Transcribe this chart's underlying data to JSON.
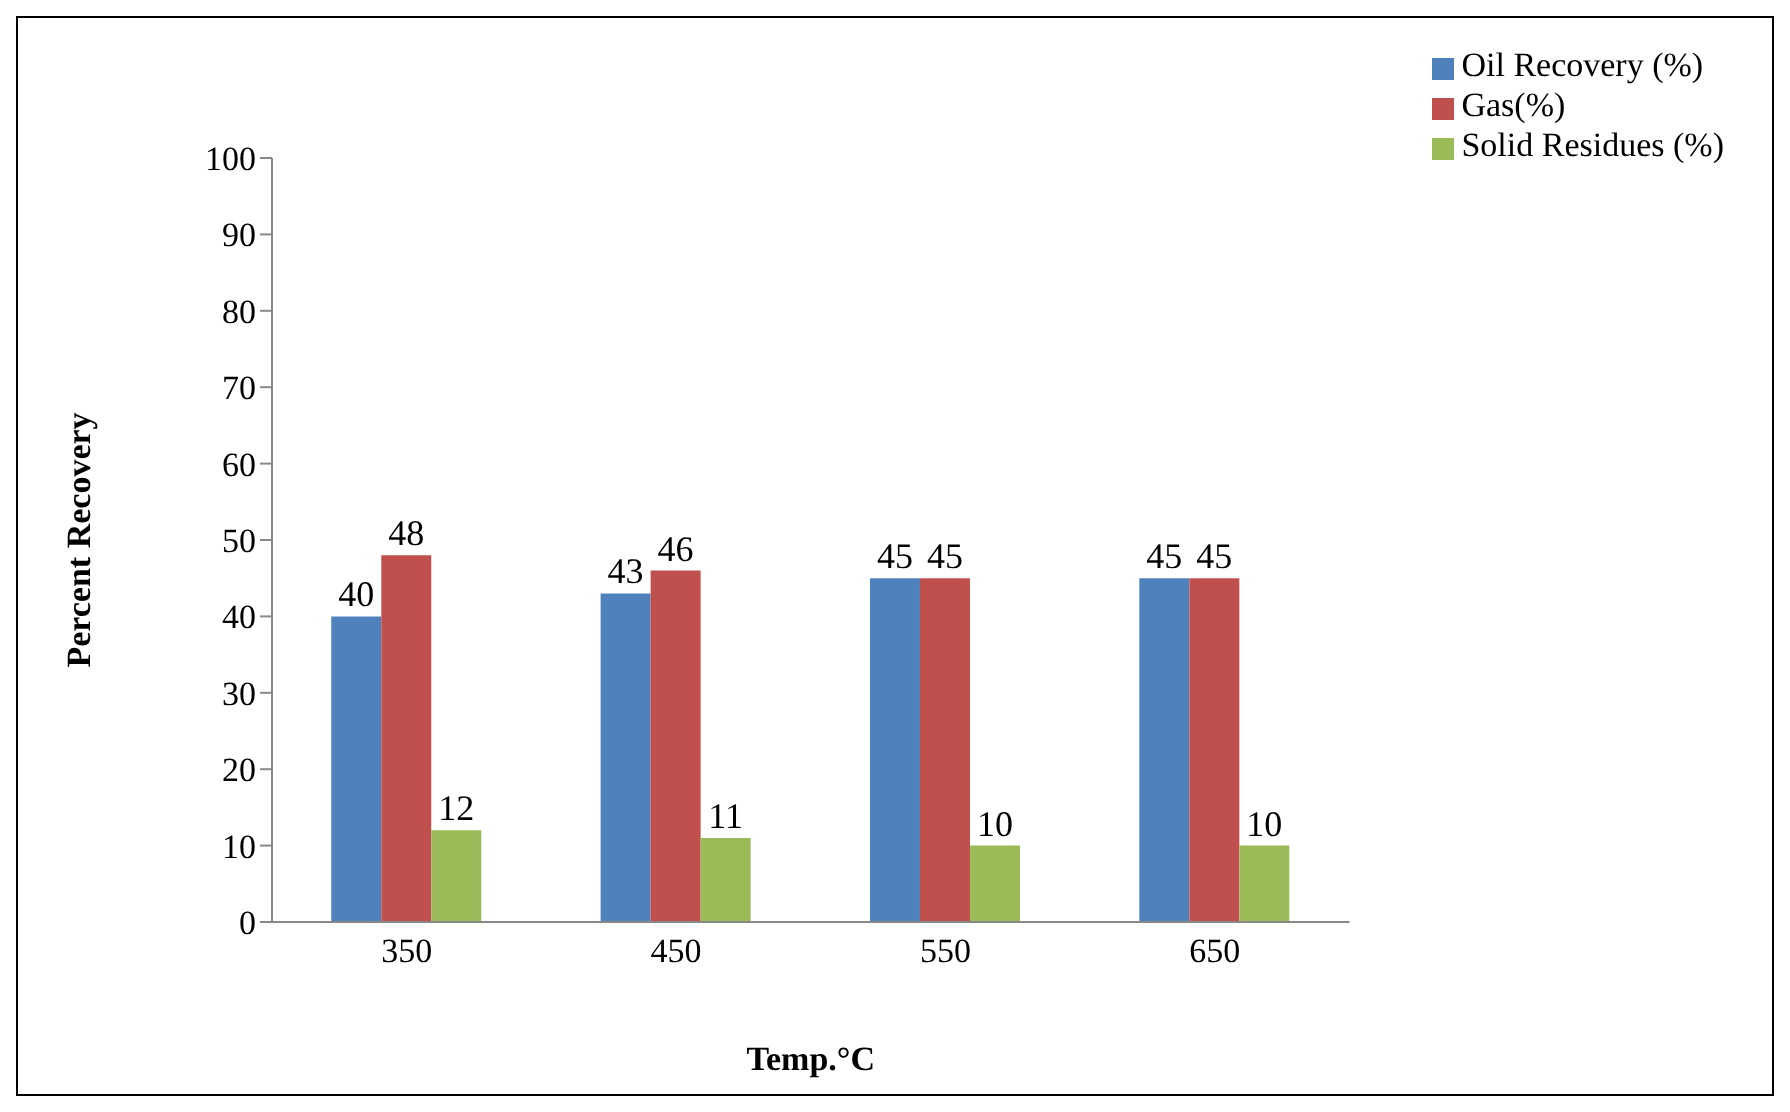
{
  "chart_data": {
    "type": "bar",
    "xlabel": "Temp.°C",
    "ylabel": "Percent Recovery",
    "categories": [
      "350",
      "450",
      "550",
      "650"
    ],
    "series": [
      {
        "name": "Oil Recovery (%)",
        "color": "#4f81bd",
        "values": [
          40,
          43,
          45,
          45
        ]
      },
      {
        "name": "Gas(%)",
        "color": "#c0504d",
        "values": [
          48,
          46,
          45,
          45
        ]
      },
      {
        "name": "Solid Residues (%)",
        "color": "#9bbb59",
        "values": [
          12,
          11,
          10,
          10
        ]
      }
    ],
    "ylim": [
      0,
      100
    ],
    "yticks": [
      0,
      10,
      20,
      30,
      40,
      50,
      60,
      70,
      80,
      90,
      100
    ],
    "data_labels": true,
    "legend": "top right",
    "grid": false
  }
}
